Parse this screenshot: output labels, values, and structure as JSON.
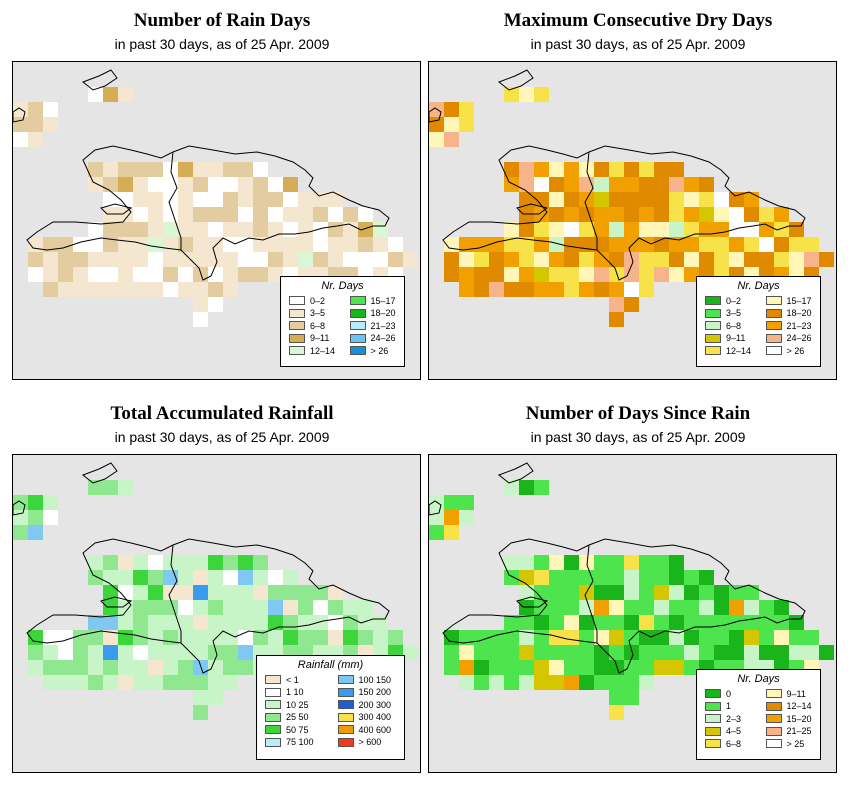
{
  "panels": [
    {
      "id": "rain-days",
      "title": "Number of Rain Days",
      "subtitle": "in past 30 days, as of  25 Apr. 2009",
      "legend_title": "Nr. Days",
      "legend": [
        {
          "label": "0–2",
          "color": "#ffffff"
        },
        {
          "label": "3–5",
          "color": "#f5e6cf"
        },
        {
          "label": "6–8",
          "color": "#e3cda0"
        },
        {
          "label": "9–11",
          "color": "#d4ad55"
        },
        {
          "label": "12–14",
          "color": "#d9f7d4"
        },
        {
          "label": "15–17",
          "color": "#4ee44e"
        },
        {
          "label": "18–20",
          "color": "#1ab51a"
        },
        {
          "label": "21–23",
          "color": "#b7eef7"
        },
        {
          "label": "24–26",
          "color": "#6ec3f0"
        },
        {
          "label": "> 26",
          "color": "#1a8fd4"
        }
      ]
    },
    {
      "id": "dry-days",
      "title": "Maximum Consecutive Dry Days",
      "subtitle": "in past 30 days, as of  25 Apr. 2009",
      "legend_title": "Nr. Days",
      "legend": [
        {
          "label": "0–2",
          "color": "#1ab51a"
        },
        {
          "label": "3–5",
          "color": "#4ee44e"
        },
        {
          "label": "6–8",
          "color": "#c8f5c8"
        },
        {
          "label": "9–11",
          "color": "#d4c600"
        },
        {
          "label": "12–14",
          "color": "#f7e24a"
        },
        {
          "label": "15–17",
          "color": "#fff6b8"
        },
        {
          "label": "18–20",
          "color": "#e08a00"
        },
        {
          "label": "21–23",
          "color": "#f2a000"
        },
        {
          "label": "24–26",
          "color": "#f7b48a"
        },
        {
          "label": "> 26",
          "color": "#ffffff"
        }
      ]
    },
    {
      "id": "rainfall",
      "title": "Total Accumulated Rainfall",
      "subtitle": "in past 30 days, as of  25 Apr. 2009",
      "legend_title": "Rainfall (mm)",
      "legend": [
        {
          "label": "< 1",
          "color": "#f5e6cf"
        },
        {
          "label": "1   10",
          "color": "#ffffff"
        },
        {
          "label": "10   25",
          "color": "#c8f5c8"
        },
        {
          "label": "25   50",
          "color": "#8fe88f"
        },
        {
          "label": "50   75",
          "color": "#3cd63c"
        },
        {
          "label": "75   100",
          "color": "#b7eef7"
        },
        {
          "label": "100  150",
          "color": "#7ec8f2"
        },
        {
          "label": "150  200",
          "color": "#3a9bf0"
        },
        {
          "label": "200  300",
          "color": "#1f5fd6"
        },
        {
          "label": "300  400",
          "color": "#f7e24a"
        },
        {
          "label": "400  600",
          "color": "#f29a00"
        },
        {
          "label": "> 600",
          "color": "#f23a1a"
        }
      ]
    },
    {
      "id": "since-rain",
      "title": "Number of Days Since Rain",
      "subtitle": "in past 30 days, as of  25 Apr. 2009",
      "legend_title": "Nr. Days",
      "legend": [
        {
          "label": "0",
          "color": "#1ab51a"
        },
        {
          "label": "1",
          "color": "#4ee44e"
        },
        {
          "label": "2–3",
          "color": "#c8f5c8"
        },
        {
          "label": "4–5",
          "color": "#d4c600"
        },
        {
          "label": "6–8",
          "color": "#f7e24a"
        },
        {
          "label": "9–11",
          "color": "#fff6b8"
        },
        {
          "label": "12–14",
          "color": "#e08a00"
        },
        {
          "label": "15–20",
          "color": "#f2a000"
        },
        {
          "label": "21–25",
          "color": "#f7b48a"
        },
        {
          "label": "> 25",
          "color": "#ffffff"
        }
      ]
    }
  ]
}
